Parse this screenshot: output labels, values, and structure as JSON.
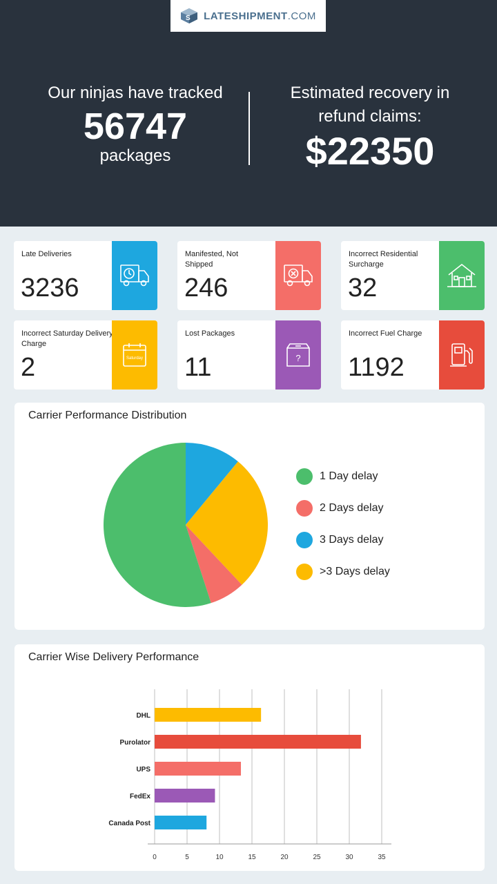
{
  "brand": {
    "name_bold": "LATESHIPMENT",
    "name_light": ".COM"
  },
  "hero": {
    "left_line": "Our ninjas have tracked",
    "left_value": "56747",
    "left_sub": "packages",
    "right_line1": "Estimated recovery in",
    "right_line2": "refund claims:",
    "right_value": "$22350"
  },
  "cards": [
    {
      "label": "Late Deliveries",
      "value": "3236",
      "color": "#1ea7df",
      "icon": "delivery-truck-clock-icon"
    },
    {
      "label": "Manifested, Not Shipped",
      "value": "246",
      "color": "#f46e68",
      "icon": "delivery-truck-x-icon"
    },
    {
      "label": "Incorrect Residential Surcharge",
      "value": "32",
      "color": "#4cbe6c",
      "icon": "house-icon"
    },
    {
      "label": "Incorrect Saturday Delivery Charge",
      "value": "2",
      "color": "#fdbb00",
      "icon": "calendar-saturday-icon",
      "icon_text": "Saturday"
    },
    {
      "label": "Lost Packages",
      "value": "11",
      "color": "#9b59b6",
      "icon": "package-question-icon",
      "icon_text": "?"
    },
    {
      "label": "Incorrect Fuel Charge",
      "value": "1192",
      "color": "#e74c3c",
      "icon": "fuel-pump-icon"
    }
  ],
  "chart_data": [
    {
      "type": "pie",
      "title": "Carrier Performance Distribution",
      "series": [
        {
          "name": "1 Day delay",
          "value": 55,
          "color": "#4cbe6c"
        },
        {
          "name": "2 Days delay",
          "value": 7,
          "color": "#f46e68"
        },
        {
          "name": "3 Days delay",
          "value": 11,
          "color": "#1ea7df"
        },
        {
          "name": ">3 Days delay",
          "value": 27,
          "color": "#fdbb00"
        }
      ],
      "legend_position": "right"
    },
    {
      "type": "bar",
      "orientation": "horizontal",
      "title": "Carrier Wise Delivery Performance",
      "categories": [
        "DHL",
        "Purolator",
        "UPS",
        "FedEx",
        "Canada Post"
      ],
      "values": [
        16.4,
        31.8,
        13.3,
        9.3,
        8.0
      ],
      "colors": [
        "#fdbb00",
        "#e74c3c",
        "#f46e68",
        "#9b59b6",
        "#1ea7df"
      ],
      "xlim": [
        0,
        35
      ],
      "xticks": [
        0,
        5,
        10,
        15,
        20,
        25,
        30,
        35
      ],
      "grid": "vertical"
    }
  ]
}
